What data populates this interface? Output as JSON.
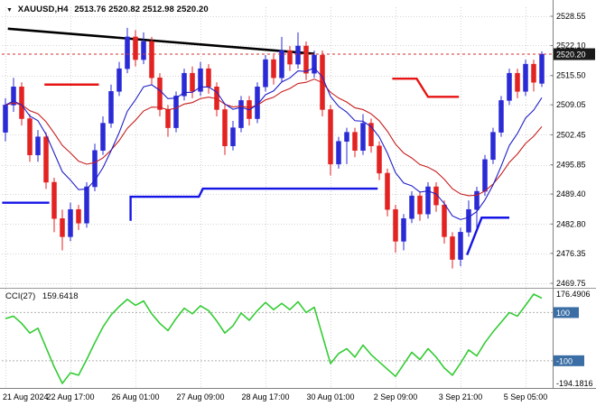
{
  "window": {
    "bg": "#FFFFFF",
    "grid_color": "#D4D4D4",
    "frame_color": "#808080",
    "axis_text_color": "#000000"
  },
  "header": {
    "marker_glyph": "▼",
    "symbol": "XAUUSD,H4",
    "ohlc": "2513.76 2520.82 2512.98 2520.20"
  },
  "chart_data": {
    "type": "candlestick",
    "title": "XAUUSD H4 with CCI(27)",
    "colors": {
      "bull": "#2A2AD6",
      "bear": "#E32222",
      "ma_fast": "#2020C8",
      "ma_slow": "#C81E1E",
      "trendline": "#000000",
      "support": "#1414E6",
      "resistance": "#E61414",
      "cci_line": "#33CC33",
      "level_line": "#B0B0B0",
      "level_badge": "#3A6EA5",
      "price_badge": "#1A1A1A",
      "current_price_line": "#D23030"
    },
    "y_axis": {
      "ticks": [
        2528.55,
        2522.1,
        2515.5,
        2509.05,
        2502.45,
        2495.85,
        2489.4,
        2482.8,
        2476.35,
        2469.75
      ],
      "current_price": 2520.2,
      "current_price_label": "2520.20"
    },
    "x_axis": {
      "labels": [
        {
          "i": 0,
          "t": "21 Aug 2024"
        },
        {
          "i": 8,
          "t": "22 Aug 17:00"
        },
        {
          "i": 16,
          "t": "26 Aug 01:00"
        },
        {
          "i": 24,
          "t": "27 Aug 09:00"
        },
        {
          "i": 32,
          "t": "28 Aug 17:00"
        },
        {
          "i": 40,
          "t": "30 Aug 01:00"
        },
        {
          "i": 48,
          "t": "2 Sep 09:00"
        },
        {
          "i": 56,
          "t": "3 Sep 21:00"
        },
        {
          "i": 64,
          "t": "5 Sep 05:00"
        }
      ]
    },
    "candle_format": "ohlc",
    "candles": [
      [
        2503,
        2510.5,
        2501,
        2509
      ],
      [
        2509,
        2515,
        2507.5,
        2513
      ],
      [
        2513,
        2514,
        2504.5,
        2506
      ],
      [
        2506,
        2507,
        2496.5,
        2498
      ],
      [
        2498,
        2503.5,
        2496.5,
        2502
      ],
      [
        2502,
        2503,
        2490.5,
        2492
      ],
      [
        2492,
        2493,
        2481,
        2484
      ],
      [
        2484,
        2486,
        2477,
        2480
      ],
      [
        2480,
        2487.5,
        2479,
        2486
      ],
      [
        2486,
        2487,
        2481.5,
        2483
      ],
      [
        2483,
        2492,
        2482,
        2491
      ],
      [
        2491,
        2500.5,
        2490,
        2499
      ],
      [
        2499,
        2506.5,
        2498,
        2505
      ],
      [
        2505,
        2513.5,
        2504,
        2512
      ],
      [
        2512,
        2518.5,
        2511,
        2517
      ],
      [
        2517,
        2526,
        2516,
        2524
      ],
      [
        2524,
        2525.5,
        2517.5,
        2519
      ],
      [
        2519,
        2525,
        2518,
        2523
      ],
      [
        2523,
        2524,
        2513.5,
        2515
      ],
      [
        2515,
        2516,
        2506.5,
        2508
      ],
      [
        2508,
        2509,
        2502,
        2504
      ],
      [
        2504,
        2512,
        2503,
        2511
      ],
      [
        2511,
        2517,
        2510,
        2516
      ],
      [
        2516,
        2517.5,
        2510.5,
        2512
      ],
      [
        2512,
        2518.5,
        2511,
        2517
      ],
      [
        2517,
        2518,
        2511.5,
        2513
      ],
      [
        2513,
        2514,
        2506.5,
        2508
      ],
      [
        2508,
        2509,
        2498,
        2500
      ],
      [
        2500,
        2505.5,
        2499,
        2504
      ],
      [
        2504,
        2511,
        2503,
        2510
      ],
      [
        2510,
        2511,
        2504.5,
        2506
      ],
      [
        2506,
        2514,
        2505,
        2513
      ],
      [
        2513,
        2520,
        2512,
        2519
      ],
      [
        2519,
        2520,
        2513.5,
        2515
      ],
      [
        2515,
        2524,
        2514,
        2521
      ],
      [
        2521,
        2522,
        2516.5,
        2518
      ],
      [
        2518,
        2525,
        2517,
        2522
      ],
      [
        2522,
        2523,
        2514.5,
        2516
      ],
      [
        2516,
        2521,
        2515,
        2520
      ],
      [
        2520,
        2521,
        2506.5,
        2508
      ],
      [
        2508,
        2509,
        2493.5,
        2496
      ],
      [
        2496,
        2502,
        2495,
        2501
      ],
      [
        2501,
        2504,
        2496,
        2503
      ],
      [
        2503,
        2504,
        2497.5,
        2499
      ],
      [
        2499,
        2507,
        2498,
        2505
      ],
      [
        2505,
        2506,
        2498.5,
        2500
      ],
      [
        2500,
        2501,
        2492.5,
        2494
      ],
      [
        2494,
        2495,
        2484.5,
        2486
      ],
      [
        2486,
        2487,
        2476.5,
        2479
      ],
      [
        2479,
        2485,
        2477,
        2484
      ],
      [
        2484,
        2490,
        2483,
        2489
      ],
      [
        2489,
        2490,
        2483.5,
        2485
      ],
      [
        2485,
        2492,
        2484,
        2491
      ],
      [
        2491,
        2492,
        2485.5,
        2487
      ],
      [
        2487,
        2488,
        2478.5,
        2480
      ],
      [
        2480,
        2481,
        2473,
        2475
      ],
      [
        2475,
        2482,
        2473.5,
        2481
      ],
      [
        2481,
        2488,
        2480,
        2486
      ],
      [
        2486,
        2491,
        2482,
        2490
      ],
      [
        2490,
        2498,
        2489,
        2497
      ],
      [
        2497,
        2504,
        2496,
        2503
      ],
      [
        2503,
        2511,
        2502,
        2510
      ],
      [
        2510,
        2517,
        2509,
        2516
      ],
      [
        2516,
        2517,
        2510.5,
        2512
      ],
      [
        2512,
        2519,
        2511,
        2518
      ],
      [
        2518,
        2519,
        2512,
        2514
      ],
      [
        2513.76,
        2520.82,
        2512.98,
        2520.2
      ]
    ],
    "overlays": {
      "trendline": [
        [
          0.3,
          2525.8
        ],
        [
          38,
          2520.3
        ]
      ],
      "resistance_segments": [
        [
          [
            4.8,
            2513.5
          ],
          [
            11.5,
            2513.5
          ]
        ],
        [
          [
            47.6,
            2514.8
          ],
          [
            50.6,
            2514.8
          ],
          [
            52.0,
            2510.8
          ],
          [
            55.8,
            2510.8
          ]
        ]
      ],
      "support_segments": [
        [
          [
            -0.4,
            2487.5
          ],
          [
            5.4,
            2487.5
          ]
        ],
        [
          [
            15.4,
            2483.5
          ],
          [
            15.4,
            2488.8
          ],
          [
            23.8,
            2488.8
          ],
          [
            24.3,
            2490.6
          ],
          [
            45.8,
            2490.6
          ]
        ],
        [
          [
            56.8,
            2476.0
          ],
          [
            58.6,
            2484.2
          ],
          [
            62.0,
            2484.2
          ]
        ]
      ],
      "ma_fast_period": 8,
      "ma_slow_period": 16
    },
    "indicator": {
      "label": "CCI(27)",
      "value_label": "159.6418",
      "max": 176.4906,
      "min": -194.1816,
      "max_label": "176.4906",
      "min_label": "-194.1816",
      "levels": [
        {
          "v": 100,
          "label": "100"
        },
        {
          "v": -100,
          "label": "-100"
        }
      ],
      "values": [
        75,
        85,
        55,
        15,
        35,
        -45,
        -125,
        -194.1816,
        -150,
        -160,
        -95,
        -25,
        40,
        90,
        125,
        155,
        130,
        148,
        95,
        55,
        25,
        75,
        118,
        95,
        128,
        108,
        65,
        15,
        45,
        98,
        68,
        108,
        142,
        112,
        138,
        112,
        145,
        100,
        122,
        5,
        -112,
        -70,
        -50,
        -85,
        -35,
        -75,
        -105,
        -135,
        -165,
        -115,
        -65,
        -95,
        -50,
        -85,
        -130,
        -160,
        -110,
        -55,
        -80,
        -25,
        20,
        60,
        100,
        85,
        130,
        176.4906,
        159.6418
      ]
    }
  }
}
